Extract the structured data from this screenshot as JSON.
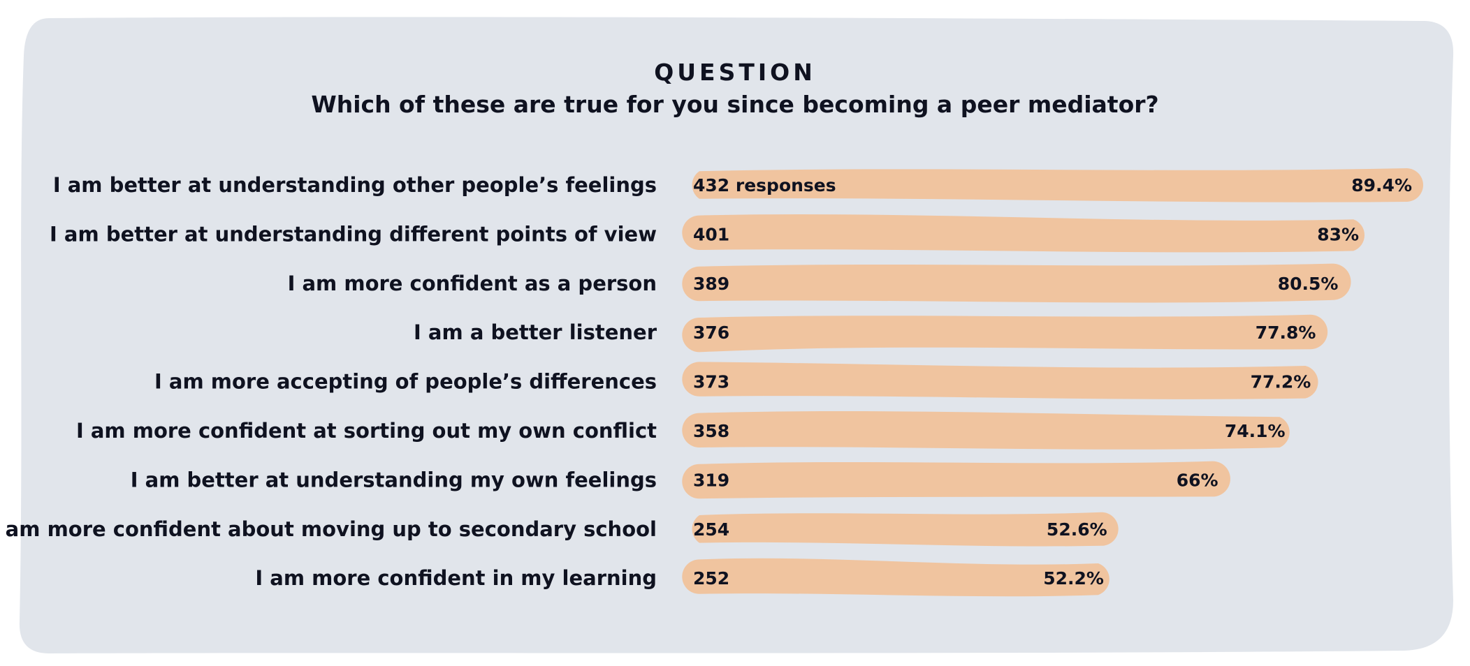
{
  "colors": {
    "panel": "#e1e5eb",
    "bar": "#f0c49f",
    "text": "#0f1220"
  },
  "header": {
    "kicker": "QUESTION",
    "question": "Which of these are true for you since becoming a peer mediator?"
  },
  "chart_data": {
    "type": "bar",
    "orientation": "horizontal",
    "title": "Which of these are true for you since becoming a peer mediator?",
    "categories": [
      "I am better at understanding other people’s feelings",
      "I am better at understanding different points of view",
      "I am more confident as a person",
      "I am a better listener",
      "I am more accepting of people’s differences",
      "I am more confident at sorting out my own conflict",
      "I am better at understanding my own feelings",
      "I am more confident about moving up to secondary school",
      "I am more confident in my learning"
    ],
    "counts": [
      432,
      401,
      389,
      376,
      373,
      358,
      319,
      254,
      252
    ],
    "count_labels": [
      "432 responses",
      "401",
      "389",
      "376",
      "373",
      "358",
      "319",
      "254",
      "252"
    ],
    "values": [
      89.4,
      83,
      80.5,
      77.8,
      77.2,
      74.1,
      66,
      52.6,
      52.2
    ],
    "value_labels": [
      "89.4%",
      "83%",
      "80.5%",
      "77.8%",
      "77.2%",
      "74.1%",
      "66%",
      "52.6%",
      "52.2%"
    ],
    "xlim": [
      0,
      100
    ],
    "xlabel": "",
    "ylabel": "",
    "grid": false,
    "legend": "none"
  }
}
